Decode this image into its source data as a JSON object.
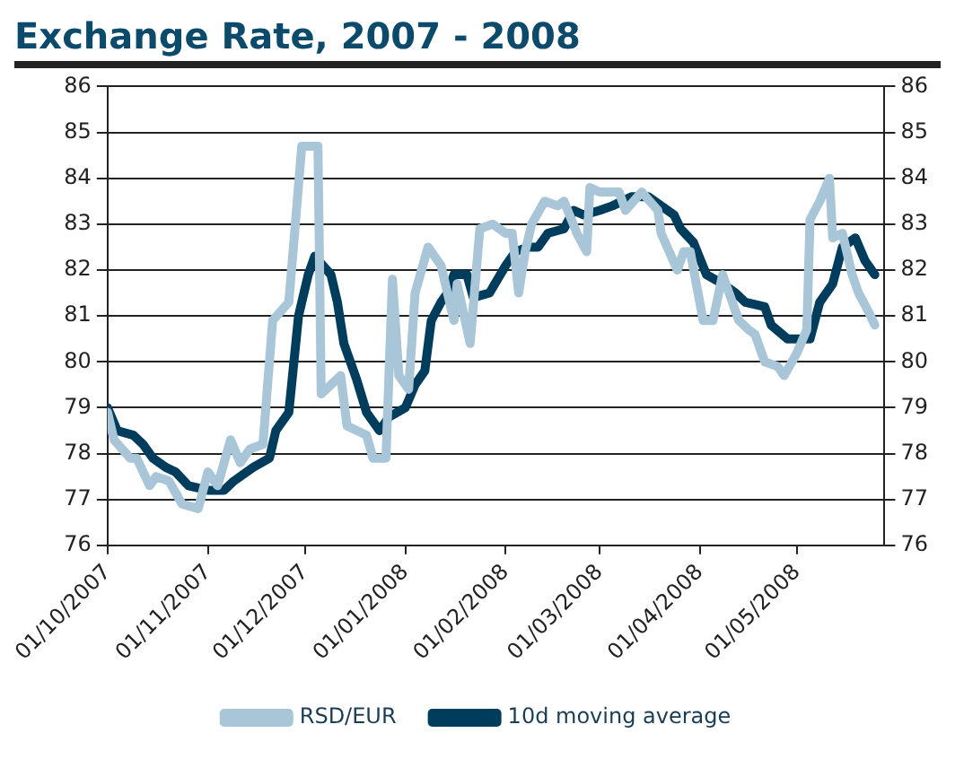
{
  "chart_data": {
    "type": "line",
    "title": "Exchange Rate, 2007 - 2008",
    "xlim": [
      "2007-10-01",
      "2008-05-28"
    ],
    "xticks": [
      {
        "value": "2007-10-01",
        "label": "01/10/2007"
      },
      {
        "value": "2007-11-01",
        "label": "01/11/2007"
      },
      {
        "value": "2007-12-01",
        "label": "01/12/2007"
      },
      {
        "value": "2008-01-01",
        "label": "01/01/2008"
      },
      {
        "value": "2008-02-01",
        "label": "01/02/2008"
      },
      {
        "value": "2008-03-01",
        "label": "01/03/2008"
      },
      {
        "value": "2008-04-01",
        "label": "01/04/2008"
      },
      {
        "value": "2008-05-01",
        "label": "01/05/2008"
      }
    ],
    "ylim": [
      76,
      86
    ],
    "yticks": [
      76,
      77,
      78,
      79,
      80,
      81,
      82,
      83,
      84,
      85,
      86
    ],
    "y2lim": [
      76,
      86
    ],
    "y2ticks": [
      76,
      77,
      78,
      79,
      80,
      81,
      82,
      83,
      84,
      85,
      86
    ],
    "grid": "y",
    "legend": "bottom",
    "marker": "none",
    "line_style": "solid",
    "series": [
      {
        "name": "RSD/EUR",
        "color": "#a9c6d8",
        "x": [
          "2007-10-01",
          "2007-10-03",
          "2007-10-08",
          "2007-10-10",
          "2007-10-14",
          "2007-10-16",
          "2007-10-20",
          "2007-10-24",
          "2007-10-29",
          "2007-11-01",
          "2007-11-04",
          "2007-11-08",
          "2007-11-11",
          "2007-11-14",
          "2007-11-18",
          "2007-11-21",
          "2007-11-26",
          "2007-11-30",
          "2007-12-05",
          "2007-12-06",
          "2007-12-12",
          "2007-12-14",
          "2007-12-20",
          "2007-12-22",
          "2007-12-26",
          "2007-12-28",
          "2007-12-30",
          "2008-01-02",
          "2008-01-04",
          "2008-01-08",
          "2008-01-12",
          "2008-01-16",
          "2008-01-17",
          "2008-01-21",
          "2008-01-24",
          "2008-01-28",
          "2008-02-01",
          "2008-02-03",
          "2008-02-05",
          "2008-02-07",
          "2008-02-09",
          "2008-02-13",
          "2008-02-17",
          "2008-02-19",
          "2008-02-23",
          "2008-02-26",
          "2008-02-27",
          "2008-03-01",
          "2008-03-07",
          "2008-03-09",
          "2008-03-14",
          "2008-03-19",
          "2008-03-20",
          "2008-03-25",
          "2008-03-27",
          "2008-03-29",
          "2008-04-02",
          "2008-04-05",
          "2008-04-08",
          "2008-04-10",
          "2008-04-13",
          "2008-04-16",
          "2008-04-18",
          "2008-04-21",
          "2008-04-25",
          "2008-04-27",
          "2008-05-01",
          "2008-05-04",
          "2008-05-05",
          "2008-05-08",
          "2008-05-11",
          "2008-05-12",
          "2008-05-15",
          "2008-05-18",
          "2008-05-20",
          "2008-05-23",
          "2008-05-25"
        ],
        "values": [
          78.9,
          78.3,
          77.9,
          77.9,
          77.3,
          77.5,
          77.4,
          76.9,
          76.8,
          77.6,
          77.3,
          78.3,
          77.8,
          78.1,
          78.2,
          80.9,
          81.3,
          84.7,
          84.7,
          79.3,
          79.7,
          78.6,
          78.4,
          77.9,
          77.9,
          81.8,
          79.7,
          79.4,
          81.5,
          82.5,
          82.1,
          80.9,
          81.7,
          80.4,
          82.9,
          83.0,
          82.8,
          82.8,
          81.5,
          82.4,
          83.0,
          83.5,
          83.4,
          83.5,
          82.8,
          82.4,
          83.8,
          83.7,
          83.7,
          83.3,
          83.7,
          83.3,
          82.8,
          82.0,
          82.4,
          82.4,
          80.9,
          80.9,
          81.9,
          81.5,
          80.9,
          80.7,
          80.6,
          80.0,
          79.9,
          79.7,
          80.2,
          80.7,
          83.1,
          83.5,
          84.0,
          82.7,
          82.8,
          81.9,
          81.5,
          81.1,
          80.8
        ]
      },
      {
        "name": "10d moving average",
        "color": "#003d5c",
        "x": [
          "2007-10-01",
          "2007-10-04",
          "2007-10-09",
          "2007-10-12",
          "2007-10-15",
          "2007-10-19",
          "2007-10-22",
          "2007-10-26",
          "2007-11-01",
          "2007-11-06",
          "2007-11-09",
          "2007-11-15",
          "2007-11-20",
          "2007-11-22",
          "2007-11-26",
          "2007-11-29",
          "2007-12-02",
          "2007-12-04",
          "2007-12-09",
          "2007-12-11",
          "2007-12-13",
          "2007-12-17",
          "2007-12-20",
          "2007-12-24",
          "2007-12-27",
          "2008-01-01",
          "2008-01-04",
          "2008-01-07",
          "2008-01-09",
          "2008-01-12",
          "2008-01-14",
          "2008-01-16",
          "2008-01-20",
          "2008-01-22",
          "2008-01-27",
          "2008-02-01",
          "2008-02-04",
          "2008-02-08",
          "2008-02-11",
          "2008-02-14",
          "2008-02-19",
          "2008-02-22",
          "2008-02-25",
          "2008-03-01",
          "2008-03-05",
          "2008-03-11",
          "2008-03-16",
          "2008-03-20",
          "2008-03-24",
          "2008-03-26",
          "2008-03-30",
          "2008-04-03",
          "2008-04-08",
          "2008-04-12",
          "2008-04-15",
          "2008-04-21",
          "2008-04-23",
          "2008-04-28",
          "2008-05-01",
          "2008-05-05",
          "2008-05-08",
          "2008-05-12",
          "2008-05-15",
          "2008-05-19",
          "2008-05-22",
          "2008-05-25"
        ],
        "values": [
          79.0,
          78.5,
          78.4,
          78.2,
          77.9,
          77.7,
          77.6,
          77.3,
          77.2,
          77.2,
          77.4,
          77.7,
          77.9,
          78.5,
          78.9,
          81.0,
          81.9,
          82.3,
          81.9,
          81.3,
          80.4,
          79.6,
          78.9,
          78.5,
          78.8,
          79.0,
          79.5,
          79.8,
          80.9,
          81.3,
          81.5,
          81.9,
          81.9,
          81.4,
          81.5,
          82.1,
          82.4,
          82.5,
          82.5,
          82.8,
          82.9,
          83.3,
          83.2,
          83.3,
          83.4,
          83.6,
          83.6,
          83.4,
          83.2,
          82.9,
          82.6,
          81.9,
          81.7,
          81.5,
          81.3,
          81.2,
          80.8,
          80.5,
          80.5,
          80.5,
          81.3,
          81.7,
          82.5,
          82.7,
          82.2,
          81.9
        ]
      }
    ]
  }
}
